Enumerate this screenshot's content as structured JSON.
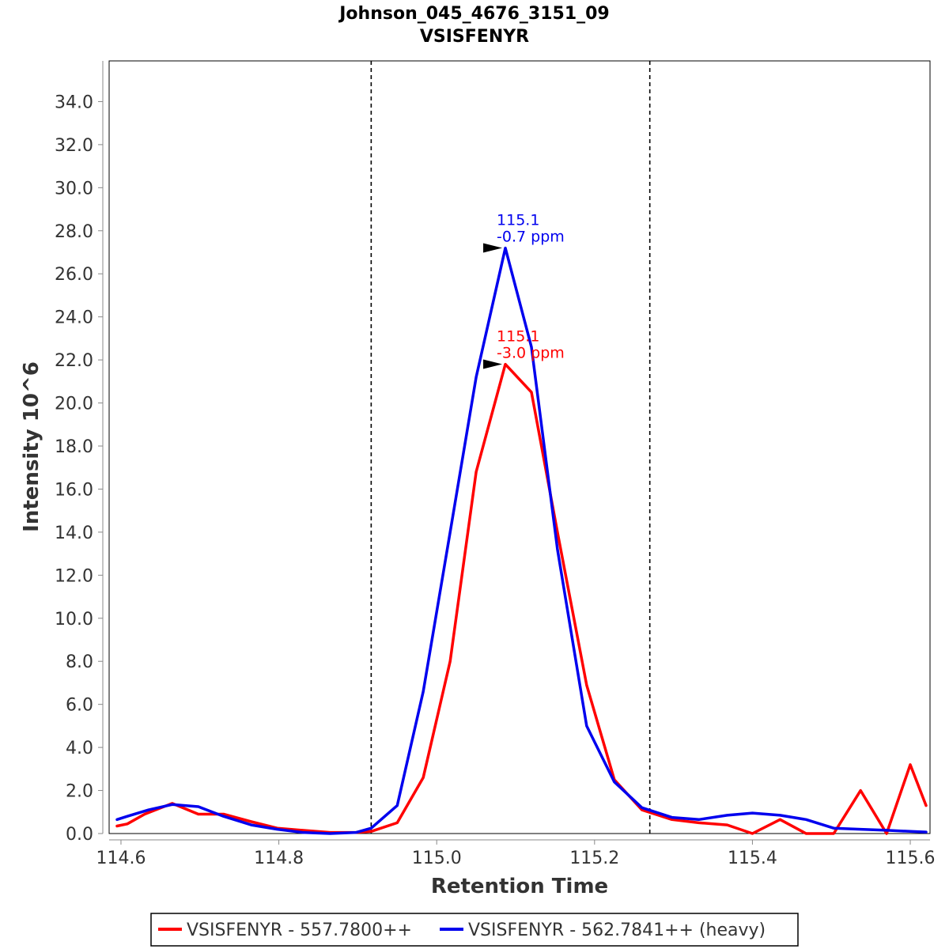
{
  "chart_data": {
    "type": "line",
    "title": "Johnson_045_4676_3151_09",
    "subtitle": "VSISFENYR",
    "xlabel": "Retention Time",
    "ylabel": "Intensity 10^6",
    "xlim": [
      114.585,
      115.625
    ],
    "ylim": [
      0,
      36
    ],
    "x_ticks": [
      "114.6",
      "114.8",
      "115.0",
      "115.2",
      "115.4",
      "115.6"
    ],
    "y_ticks": [
      "0.0",
      "2.0",
      "4.0",
      "6.0",
      "8.0",
      "10.0",
      "12.0",
      "14.0",
      "16.0",
      "18.0",
      "20.0",
      "22.0",
      "24.0",
      "26.0",
      "28.0",
      "30.0",
      "32.0",
      "34.0"
    ],
    "x_tick_values": [
      114.6,
      114.8,
      115.0,
      115.2,
      115.4,
      115.6
    ],
    "y_tick_values": [
      0,
      2,
      4,
      6,
      8,
      10,
      12,
      14,
      16,
      18,
      20,
      22,
      24,
      26,
      28,
      30,
      32,
      34
    ],
    "vertical_markers": [
      114.917,
      115.27
    ],
    "series": [
      {
        "name": "VSISFENYR - 557.7800++",
        "color": "#ff0000",
        "x": [
          114.595,
          114.608,
          114.63,
          114.665,
          114.698,
          114.73,
          114.765,
          114.798,
          114.83,
          114.865,
          114.898,
          114.917,
          114.95,
          114.983,
          115.017,
          115.05,
          115.087,
          115.12,
          115.153,
          115.19,
          115.225,
          115.26,
          115.298,
          115.332,
          115.368,
          115.4,
          115.435,
          115.468,
          115.503,
          115.537,
          115.57,
          115.6,
          115.62
        ],
        "y": [
          0.35,
          0.45,
          0.9,
          1.4,
          0.9,
          0.9,
          0.55,
          0.25,
          0.15,
          0.05,
          0.05,
          0.1,
          0.5,
          2.6,
          8.0,
          16.8,
          21.8,
          20.5,
          14.0,
          6.9,
          2.5,
          1.1,
          0.65,
          0.5,
          0.4,
          0.0,
          0.65,
          0.0,
          0.0,
          2.0,
          0.0,
          3.2,
          1.3
        ]
      },
      {
        "name": "VSISFENYR - 562.7841++ (heavy)",
        "color": "#0000ee",
        "x": [
          114.595,
          114.608,
          114.635,
          114.665,
          114.698,
          114.73,
          114.765,
          114.798,
          114.83,
          114.865,
          114.898,
          114.917,
          114.95,
          114.983,
          115.017,
          115.05,
          115.087,
          115.12,
          115.153,
          115.19,
          115.225,
          115.26,
          115.298,
          115.332,
          115.368,
          115.4,
          115.435,
          115.468,
          115.503,
          115.537,
          115.57,
          115.6,
          115.62
        ],
        "y": [
          0.65,
          0.8,
          1.1,
          1.35,
          1.25,
          0.8,
          0.4,
          0.2,
          0.05,
          0.0,
          0.05,
          0.25,
          1.3,
          6.6,
          14.0,
          21.2,
          27.2,
          22.6,
          13.2,
          5.0,
          2.4,
          1.2,
          0.75,
          0.65,
          0.85,
          0.95,
          0.85,
          0.65,
          0.25,
          0.2,
          0.15,
          0.1,
          0.07
        ]
      }
    ],
    "annotations": [
      {
        "series": 1,
        "x": 115.087,
        "y": 27.2,
        "line1": "115.1",
        "line2": "-0.7 ppm",
        "color": "#0000ee"
      },
      {
        "series": 0,
        "x": 115.087,
        "y": 21.8,
        "line1": "115.1",
        "line2": "-3.0 ppm",
        "color": "#ff0000"
      }
    ],
    "grid": false,
    "legend_position": "bottom"
  }
}
